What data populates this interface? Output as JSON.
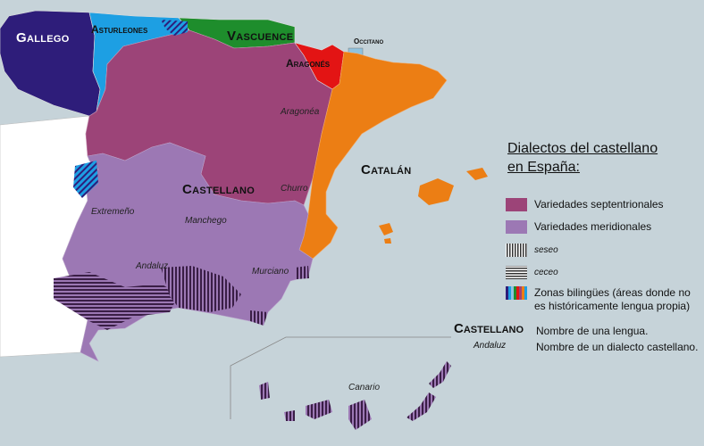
{
  "colors": {
    "sea": "#c6d3d9",
    "gallego": "#2e1d7a",
    "asturleones": "#1d9fe3",
    "vascuence": "#1e8d2c",
    "aragones": "#e31414",
    "occitano": "#8fc2df",
    "catalan": "#ec7e14",
    "septentrional": "#9c4478",
    "meridional": "#9c78b4",
    "portugal": "#ffffff"
  },
  "map": {
    "languages": {
      "gallego": "Gallego",
      "asturleones": "Asturleones",
      "vascuence": "Vascuence",
      "occitano": "Occitano",
      "aragones": "Aragonés",
      "castellano": "Castellano",
      "catalan": "Catalán"
    },
    "dialects": {
      "aragonea": "Aragonéa",
      "churro": "Churro",
      "extremeno": "Extremeño",
      "manchego": "Manchego",
      "andaluz": "Andaluz",
      "murciano": "Murciano",
      "canario": "Canario"
    }
  },
  "legend": {
    "title_line1": "Dialectos del castellano",
    "title_line2": "en España:",
    "items": [
      {
        "key": "septentrional",
        "label": "Variedades septentrionales"
      },
      {
        "key": "meridional",
        "label": "Variedades meridionales"
      },
      {
        "key": "seseo",
        "label": "seseo"
      },
      {
        "key": "ceceo",
        "label": "ceceo"
      },
      {
        "key": "bilingual",
        "label_line1": "Zonas bilingües (áreas donde no",
        "label_line2": "es históricamente lengua propia)"
      }
    ],
    "key_language_example": "Castellano",
    "key_language_desc": "Nombre de una lengua.",
    "key_dialect_example": "Andaluz",
    "key_dialect_desc": "Nombre de un dialecto castellano."
  }
}
